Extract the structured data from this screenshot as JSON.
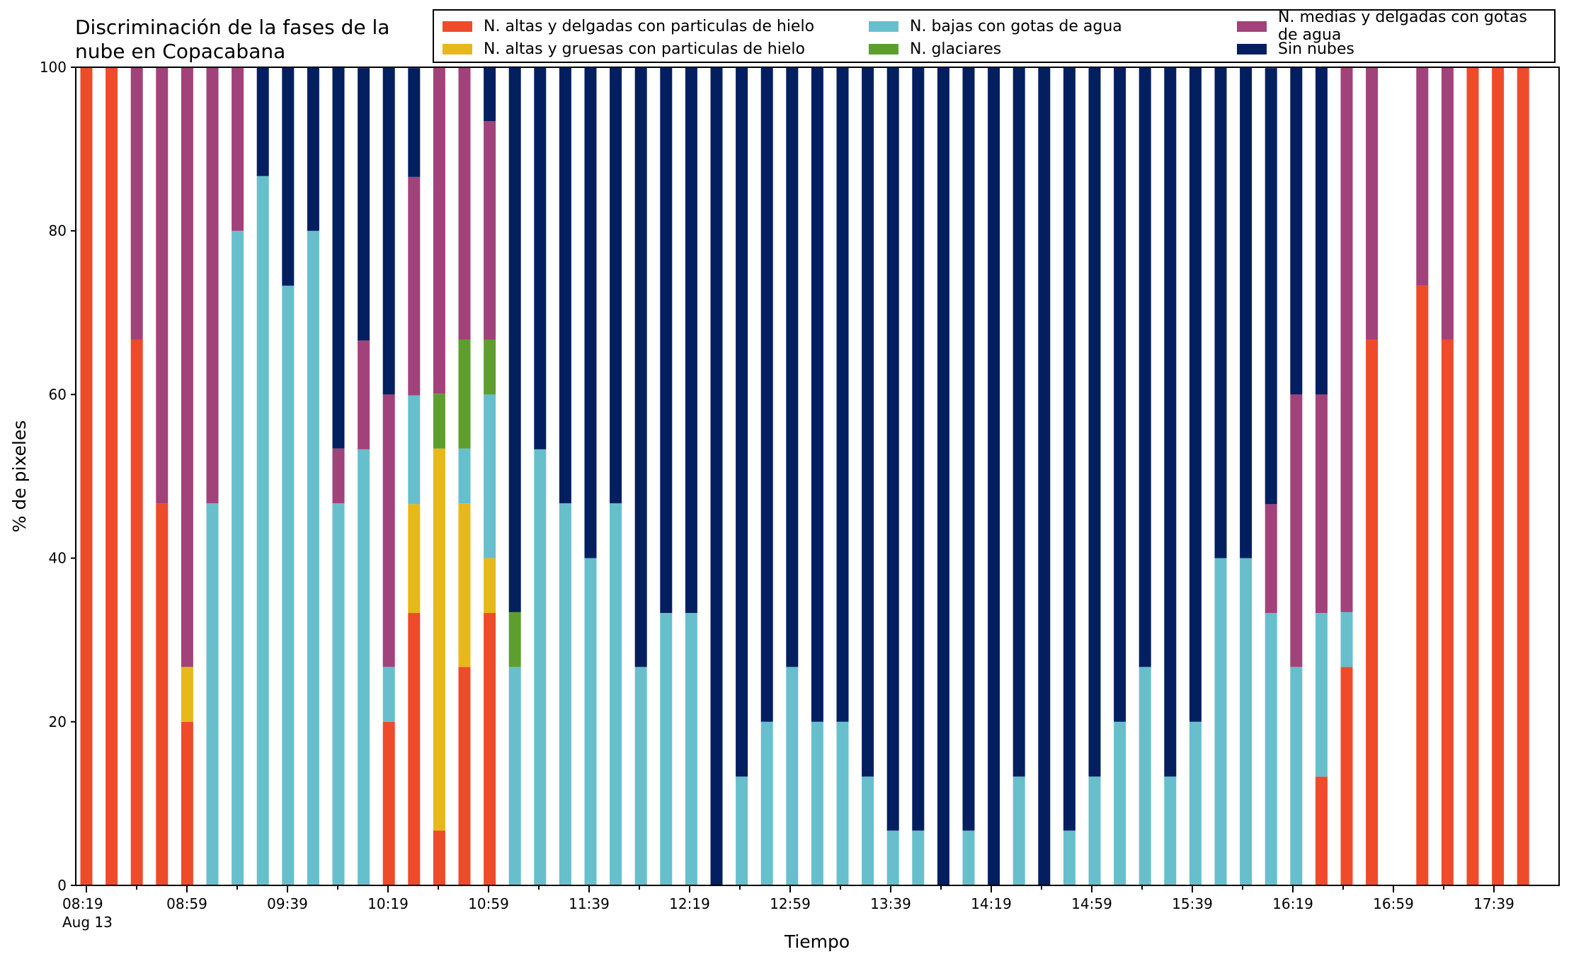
{
  "chart_data": {
    "type": "bar",
    "stacked": true,
    "title": "Discriminación de la fases de la\nnube en Copacabana",
    "xlabel": "Tiempo",
    "ylabel": "% de pixeles",
    "ylim": [
      0,
      100
    ],
    "yticks": [
      0,
      20,
      40,
      60,
      80,
      100
    ],
    "xtick_labels": [
      "08:19\nAug 13",
      "08:59",
      "09:39",
      "10:19",
      "10:59",
      "11:39",
      "12:19",
      "12:59",
      "13:39",
      "14:19",
      "14:59",
      "15:39",
      "16:19",
      "16:59",
      "17:39"
    ],
    "categories": [
      "08:19",
      "08:29",
      "08:39",
      "08:49",
      "08:59",
      "09:09",
      "09:19",
      "09:29",
      "09:39",
      "09:49",
      "09:59",
      "10:09",
      "10:19",
      "10:29",
      "10:39",
      "10:49",
      "10:59",
      "11:09",
      "11:19",
      "11:29",
      "11:39",
      "11:49",
      "11:59",
      "12:09",
      "12:19",
      "12:29",
      "12:39",
      "12:49",
      "12:59",
      "13:09",
      "13:19",
      "13:29",
      "13:39",
      "13:49",
      "13:59",
      "14:09",
      "14:19",
      "14:29",
      "14:39",
      "14:49",
      "14:59",
      "15:09",
      "15:19",
      "15:29",
      "15:39",
      "15:49",
      "15:59",
      "16:09",
      "16:19",
      "16:29",
      "16:39",
      "16:49",
      "16:59",
      "17:09",
      "17:19",
      "17:29",
      "17:39",
      "17:49"
    ],
    "legend_position": "top-right",
    "series": [
      {
        "name": "N. altas y delgadas con particulas de hielo",
        "color": "#ee4b2b",
        "values": [
          100,
          100,
          66.7,
          46.7,
          20,
          0,
          0,
          0,
          0,
          0,
          0,
          0,
          20,
          33.3,
          6.7,
          26.7,
          33.3,
          0,
          0,
          0,
          0,
          0,
          0,
          0,
          0,
          0,
          0,
          0,
          0,
          0,
          0,
          0,
          0,
          0,
          0,
          0,
          0,
          0,
          0,
          0,
          0,
          0,
          0,
          0,
          0,
          0,
          0,
          0,
          0,
          13.3,
          26.7,
          66.7,
          0,
          73.3,
          66.7,
          100,
          100,
          100
        ]
      },
      {
        "name": "N. altas y gruesas con particulas de hielo",
        "color": "#e6b81a",
        "values": [
          0,
          0,
          0,
          0,
          6.7,
          0,
          0,
          0,
          0,
          0,
          0,
          0,
          0,
          13.3,
          46.7,
          20,
          6.7,
          0,
          0,
          0,
          0,
          0,
          0,
          0,
          0,
          0,
          0,
          0,
          0,
          0,
          0,
          0,
          0,
          0,
          0,
          0,
          0,
          0,
          0,
          0,
          0,
          0,
          0,
          0,
          0,
          0,
          0,
          0,
          0,
          0,
          0,
          0,
          0,
          0,
          0,
          0,
          0,
          0
        ]
      },
      {
        "name": "N. bajas con gotas de agua",
        "color": "#67bfcc",
        "values": [
          0,
          0,
          0,
          0,
          0,
          46.7,
          80,
          86.7,
          73.3,
          80,
          46.7,
          53.3,
          6.7,
          13.3,
          0,
          6.7,
          20,
          26.7,
          53.3,
          46.7,
          40,
          46.7,
          26.7,
          33.3,
          33.3,
          0,
          13.3,
          20,
          26.7,
          20,
          20,
          13.3,
          6.7,
          6.7,
          0,
          6.7,
          0,
          13.3,
          0,
          6.7,
          13.3,
          20,
          26.7,
          13.3,
          20,
          40,
          40,
          33.3,
          26.7,
          20,
          6.7,
          0,
          0,
          0,
          0,
          0,
          0,
          0
        ]
      },
      {
        "name": "N. glaciares",
        "color": "#5e9e2e",
        "values": [
          0,
          0,
          0,
          0,
          0,
          0,
          0,
          0,
          0,
          0,
          0,
          0,
          0,
          0,
          6.7,
          13.3,
          6.7,
          6.7,
          0,
          0,
          0,
          0,
          0,
          0,
          0,
          0,
          0,
          0,
          0,
          0,
          0,
          0,
          0,
          0,
          0,
          0,
          0,
          0,
          0,
          0,
          0,
          0,
          0,
          0,
          0,
          0,
          0,
          0,
          0,
          0,
          0,
          0,
          0,
          0,
          0,
          0,
          0,
          0
        ]
      },
      {
        "name": "N. medias y delgadas con gotas de agua",
        "color": "#a2427a",
        "values": [
          0,
          0,
          33.3,
          53.3,
          73.3,
          53.3,
          20,
          0,
          0,
          0,
          6.7,
          13.3,
          33.3,
          26.7,
          40,
          33.3,
          26.7,
          0,
          0,
          0,
          0,
          0,
          0,
          0,
          0,
          0,
          0,
          0,
          0,
          0,
          0,
          0,
          0,
          0,
          0,
          0,
          0,
          0,
          0,
          0,
          0,
          0,
          0,
          0,
          0,
          0,
          0,
          13.3,
          33.3,
          26.7,
          66.7,
          33.3,
          0,
          26.7,
          33.3,
          0,
          0,
          0
        ]
      },
      {
        "name": "Sin nubes",
        "color": "#031f60",
        "values": [
          0,
          0,
          0,
          0,
          0,
          0,
          0,
          13.3,
          26.7,
          20,
          46.7,
          33.3,
          40,
          13.3,
          0,
          0,
          6.7,
          66.7,
          46.7,
          53.3,
          60,
          53.3,
          73.3,
          66.7,
          66.7,
          100,
          86.7,
          80,
          73.3,
          80,
          80,
          86.7,
          93.3,
          93.3,
          100,
          93.3,
          100,
          86.7,
          100,
          93.3,
          86.7,
          80,
          73.3,
          86.7,
          80,
          60,
          60,
          53.3,
          40,
          40,
          0,
          0,
          0,
          0,
          0,
          0,
          0,
          0
        ]
      }
    ]
  }
}
